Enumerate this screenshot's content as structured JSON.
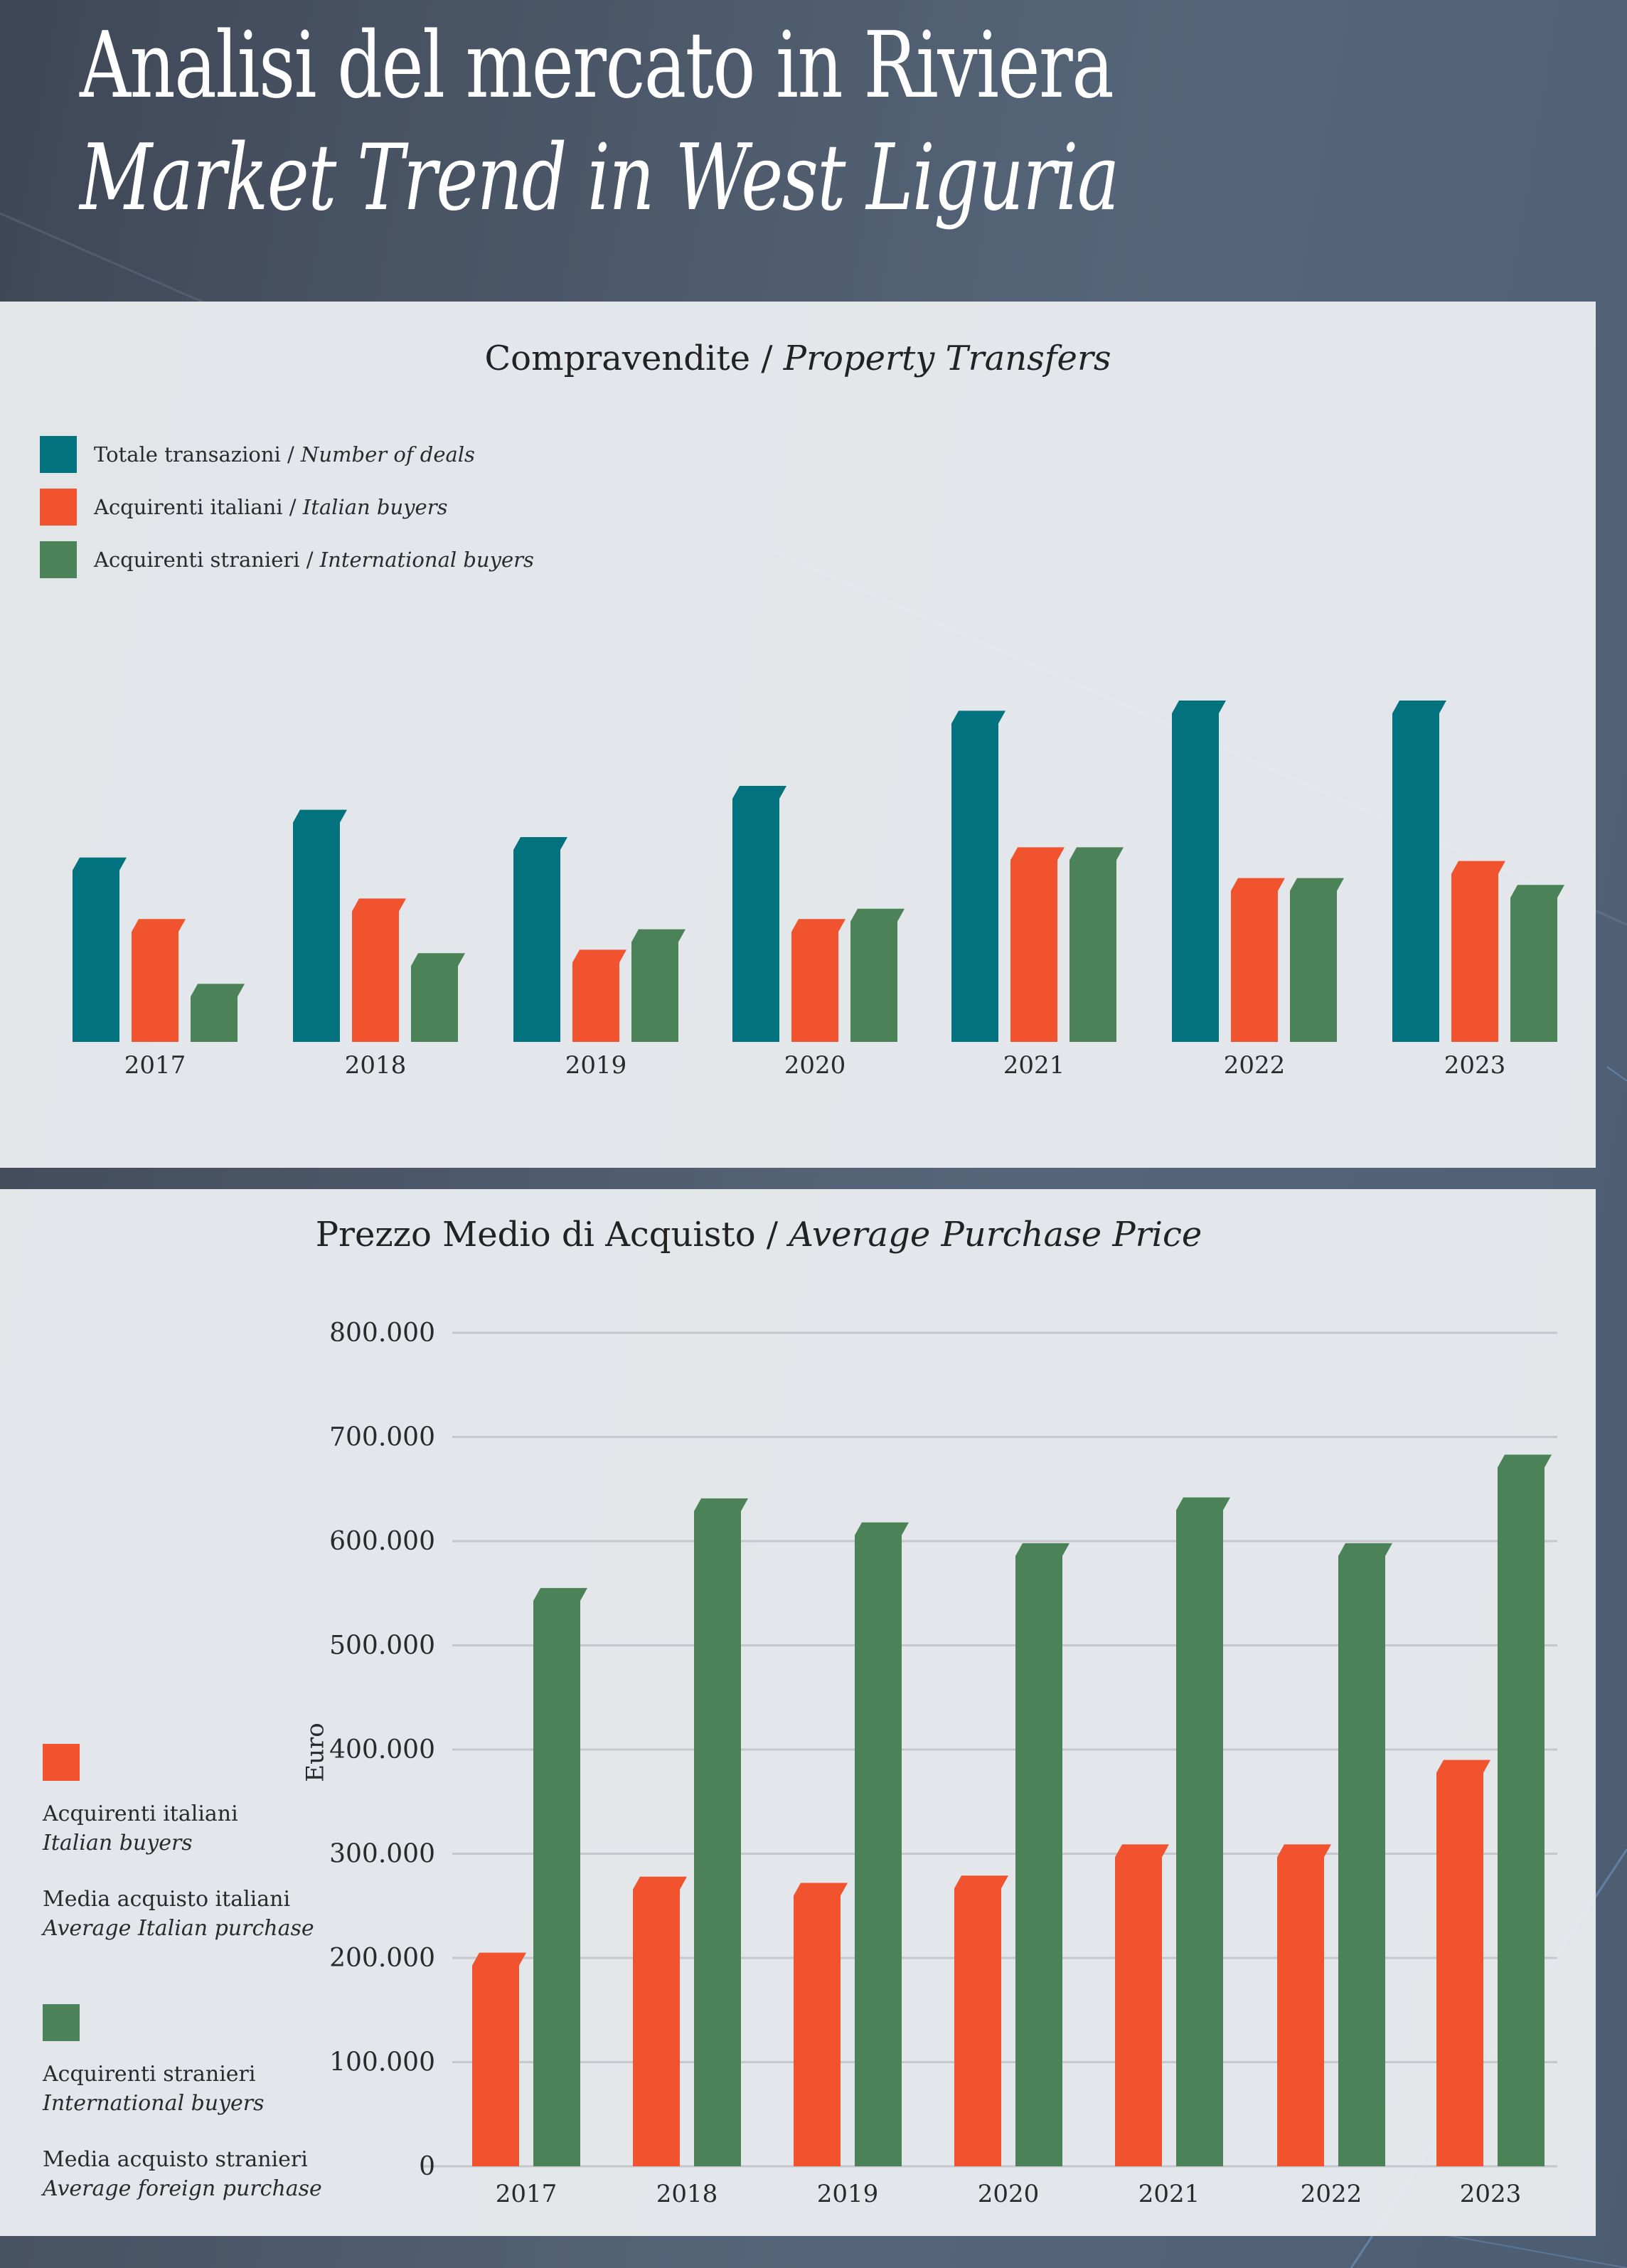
{
  "header": {
    "title_it": "Analisi del mercato in Riviera",
    "title_en": "Market Trend in West Liguria"
  },
  "colors": {
    "teal": "#02727f",
    "orange": "#f0532d",
    "green": "#4b8257",
    "panel": "#e9ecef",
    "background": "#4d5a6b"
  },
  "chart_data": [
    {
      "type": "bar",
      "title": "Compravendite / Property Transfers",
      "title_it": "Compravendite",
      "title_en": "Property Transfers",
      "xlabel": "",
      "ylabel": "",
      "y_axis_shown": false,
      "value_units": "relative bar height (no axis shown; max = 100)",
      "grid": false,
      "legend_position": "top-left",
      "categories": [
        "2017",
        "2018",
        "2019",
        "2020",
        "2021",
        "2022",
        "2023"
      ],
      "series": [
        {
          "name": "Totale transazioni / Number of deals",
          "name_it": "Totale transazioni",
          "name_en": "Number of deals",
          "color": "#02727f",
          "values": [
            54,
            68,
            60,
            75,
            97,
            100,
            100
          ]
        },
        {
          "name": "Acquirenti italiani / Italian buyers",
          "name_it": "Acquirenti italiani",
          "name_en": "Italian buyers",
          "color": "#f0532d",
          "values": [
            36,
            42,
            27,
            36,
            57,
            48,
            53
          ]
        },
        {
          "name": "Acquirenti stranieri / International buyers",
          "name_it": "Acquirenti stranieri",
          "name_en": "International buyers",
          "color": "#4b8257",
          "values": [
            17,
            26,
            33,
            39,
            57,
            48,
            46
          ]
        }
      ]
    },
    {
      "type": "bar",
      "title": "Prezzo Medio di Acquisto / Average Purchase Price",
      "title_it": "Prezzo Medio di Acquisto",
      "title_en": "Average Purchase Price",
      "xlabel": "",
      "ylabel": "Euro",
      "ylim": [
        0,
        800000
      ],
      "yticks": [
        0,
        100000,
        200000,
        300000,
        400000,
        500000,
        600000,
        700000,
        800000
      ],
      "ytick_labels": [
        "0",
        "100.000",
        "200.000",
        "300.000",
        "400.000",
        "500.000",
        "600.000",
        "700.000",
        "800.000"
      ],
      "grid": true,
      "legend_position": "left",
      "categories": [
        "2017",
        "2018",
        "2019",
        "2020",
        "2021",
        "2022",
        "2023"
      ],
      "series": [
        {
          "name": "Acquirenti italiani / Italian buyers",
          "name_it": "Acquirenti italiani",
          "name_en": "Italian buyers",
          "desc_it": "Media acquisto italiani",
          "desc_en": "Average Italian purchase",
          "color": "#f0532d",
          "values": [
            205000,
            278000,
            272000,
            279000,
            309000,
            309000,
            390000
          ]
        },
        {
          "name": "Acquirenti stranieri / International buyers",
          "name_it": "Acquirenti stranieri",
          "name_en": "International buyers",
          "desc_it": "Media acquisto stranieri",
          "desc_en": "Average foreign purchase",
          "color": "#4b8257",
          "values": [
            555000,
            641000,
            618000,
            598000,
            642000,
            598000,
            683000
          ]
        }
      ]
    }
  ]
}
